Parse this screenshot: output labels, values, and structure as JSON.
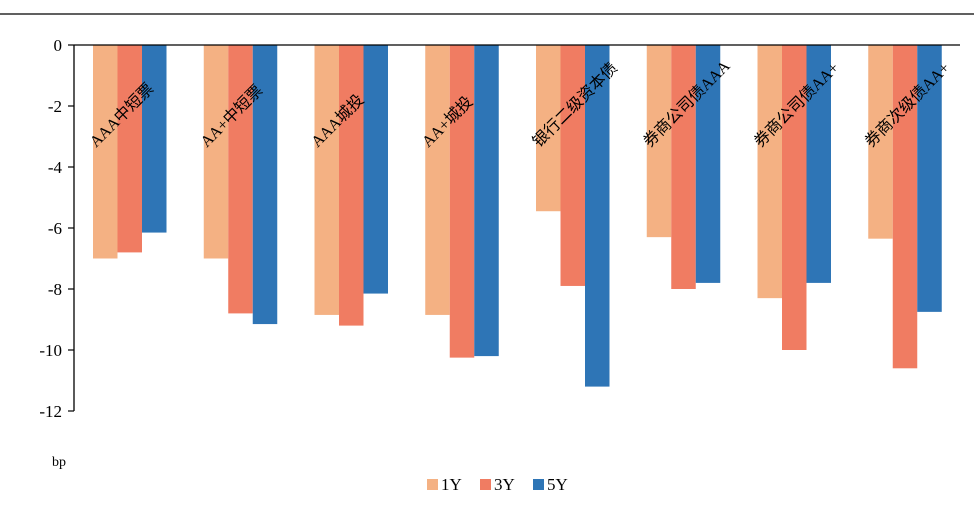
{
  "chart_data": {
    "type": "bar",
    "categories": [
      "AAA中短票",
      "AA+中短票",
      "AAA城投",
      "AA+城投",
      "银行二级资本债",
      "券商公司债AAA",
      "券商公司债AA+",
      "券商次级债AA+"
    ],
    "series": [
      {
        "name": "1Y",
        "color": "#F4B183",
        "values": [
          -7.0,
          -7.0,
          -8.85,
          -8.85,
          -5.45,
          -6.3,
          -8.3,
          -6.35
        ]
      },
      {
        "name": "3Y",
        "color": "#F07C62",
        "values": [
          -6.8,
          -8.8,
          -9.2,
          -10.25,
          -7.9,
          -8.0,
          -10.0,
          -10.6
        ]
      },
      {
        "name": "5Y",
        "color": "#2E75B6",
        "values": [
          -6.15,
          -9.15,
          -8.15,
          -10.2,
          -11.2,
          -7.8,
          -7.8,
          -8.75
        ]
      }
    ],
    "title": "",
    "xlabel": "",
    "ylabel": "bp",
    "ylim": [
      -12,
      0
    ],
    "yticks": [
      "0",
      "-2",
      "-4",
      "-6",
      "-8",
      "-10",
      "-12"
    ],
    "grid": false,
    "legend_position": "bottom"
  }
}
